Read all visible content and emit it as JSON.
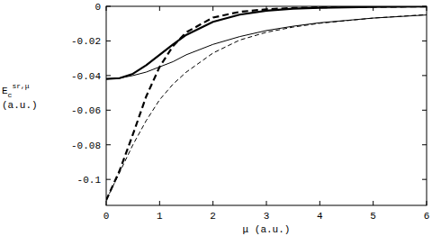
{
  "chart_data": {
    "type": "line",
    "x_label": "μ (a.u.)",
    "y_label": {
      "text": "E",
      "subscript": "c",
      "superscript": "sr,μ",
      "unit": "(a.u.)"
    },
    "x": [
      0,
      0.25,
      0.5,
      0.75,
      1,
      1.25,
      1.5,
      2,
      2.5,
      3,
      3.5,
      4,
      5,
      6
    ],
    "series": [
      {
        "color": "#000000",
        "line_style": "bold-solid",
        "values": [
          -0.042,
          -0.0415,
          -0.039,
          -0.034,
          -0.028,
          -0.022,
          -0.0165,
          -0.009,
          -0.0048,
          -0.0025,
          -0.0014,
          -0.0008,
          -0.0003,
          -0.0001
        ]
      },
      {
        "color": "#000000",
        "line_style": "bold-dashed",
        "values": [
          -0.112,
          -0.095,
          -0.074,
          -0.052,
          -0.035,
          -0.023,
          -0.015,
          -0.0065,
          -0.0032,
          -0.0017,
          -0.001,
          -0.0006,
          -0.0002,
          -0.0001
        ]
      },
      {
        "color": "#000000",
        "line_style": "solid",
        "values": [
          -0.042,
          -0.0415,
          -0.04,
          -0.038,
          -0.035,
          -0.032,
          -0.028,
          -0.022,
          -0.0175,
          -0.014,
          -0.0115,
          -0.0095,
          -0.0068,
          -0.005
        ]
      },
      {
        "color": "#000000",
        "line_style": "dashed",
        "values": [
          -0.112,
          -0.096,
          -0.08,
          -0.066,
          -0.054,
          -0.045,
          -0.038,
          -0.027,
          -0.0195,
          -0.015,
          -0.012,
          -0.0098,
          -0.0068,
          -0.0048
        ]
      }
    ],
    "xlim": [
      0,
      6
    ],
    "ylim": [
      -0.115,
      0
    ],
    "xticks": [
      0,
      1,
      2,
      3,
      4,
      5,
      6
    ],
    "yticks": [
      0,
      -0.02,
      -0.04,
      -0.06,
      -0.08,
      -0.1
    ],
    "grid": false
  }
}
